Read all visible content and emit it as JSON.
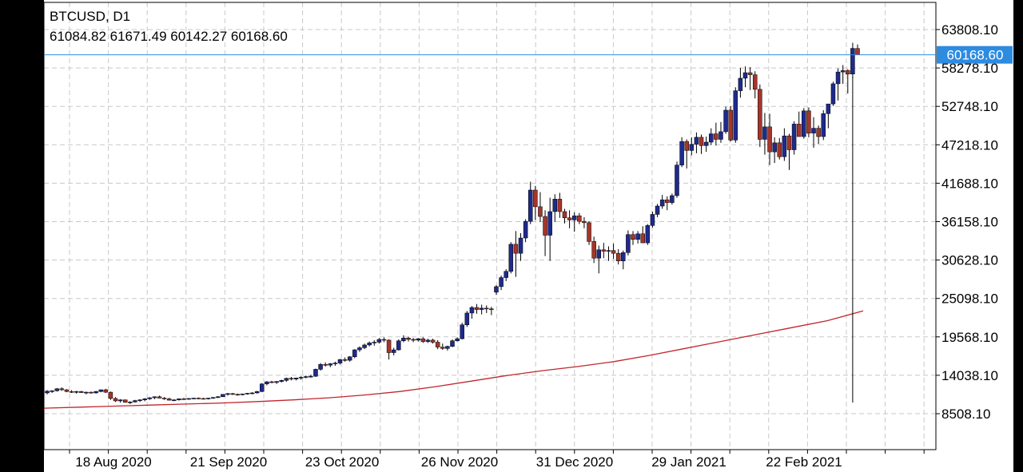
{
  "chart_data": {
    "type": "candlestick",
    "symbol": "BTCUSD, D1",
    "ohlc_label": "61084.82 61671.49 60142.27 60168.60",
    "last_price_label": "60168.60",
    "last_price": 60168.6,
    "y_ticks": [
      "63808.10",
      "58278.10",
      "52748.10",
      "47218.10",
      "41688.10",
      "36158.10",
      "30628.10",
      "25098.10",
      "19568.10",
      "14038.10",
      "8508.10"
    ],
    "x_ticks": [
      "18 Aug 2020",
      "21 Sep 2020",
      "23 Oct 2020",
      "26 Nov 2020",
      "31 Dec 2020",
      "29 Jan 2021",
      "22 Feb 2021"
    ],
    "ylim": [
      3500,
      66500
    ],
    "grid": true,
    "ma_series": {
      "values": [
        9300,
        9450,
        9600,
        9750,
        9900,
        10050,
        10250,
        10500,
        10800,
        11200,
        11700,
        12400,
        13200,
        14000,
        14700,
        15300,
        16000,
        16900,
        17900,
        18900,
        19900,
        20900,
        21900,
        23300
      ]
    },
    "candles": [
      [
        11500,
        11900,
        11300,
        11750
      ],
      [
        11750,
        11900,
        11500,
        11800
      ],
      [
        11800,
        12200,
        11700,
        12100
      ],
      [
        12100,
        12300,
        11800,
        11950
      ],
      [
        11950,
        12050,
        11600,
        11700
      ],
      [
        11700,
        11900,
        11500,
        11650
      ],
      [
        11650,
        11800,
        11400,
        11700
      ],
      [
        11700,
        11800,
        11500,
        11550
      ],
      [
        11550,
        11700,
        11300,
        11600
      ],
      [
        11600,
        11700,
        11400,
        11500
      ],
      [
        11500,
        11800,
        11400,
        11700
      ],
      [
        11700,
        12000,
        11600,
        11950
      ],
      [
        11950,
        12100,
        11500,
        11600
      ],
      [
        11600,
        11700,
        10500,
        10700
      ],
      [
        10700,
        10900,
        10200,
        10350
      ],
      [
        10350,
        10600,
        10100,
        10500
      ],
      [
        10500,
        10550,
        10100,
        10150
      ],
      [
        10150,
        10300,
        9900,
        10200
      ],
      [
        10200,
        10500,
        10100,
        10400
      ],
      [
        10400,
        10600,
        10200,
        10500
      ],
      [
        10500,
        10750,
        10300,
        10650
      ],
      [
        10650,
        10900,
        10500,
        10800
      ],
      [
        10800,
        11000,
        10600,
        10950
      ],
      [
        10950,
        11100,
        10700,
        10750
      ],
      [
        10750,
        10900,
        10500,
        10650
      ],
      [
        10650,
        10800,
        10400,
        10450
      ],
      [
        10450,
        10600,
        10300,
        10500
      ],
      [
        10500,
        10700,
        10400,
        10650
      ],
      [
        10650,
        10800,
        10500,
        10600
      ],
      [
        10600,
        10750,
        10500,
        10700
      ],
      [
        10700,
        10800,
        10600,
        10750
      ],
      [
        10750,
        10850,
        10600,
        10700
      ],
      [
        10700,
        10800,
        10600,
        10650
      ],
      [
        10650,
        10800,
        10550,
        10750
      ],
      [
        10750,
        10900,
        10650,
        10850
      ],
      [
        10850,
        11050,
        10750,
        10950
      ],
      [
        10950,
        11200,
        10900,
        11300
      ],
      [
        11300,
        11500,
        11100,
        11400
      ],
      [
        11400,
        11500,
        11200,
        11300
      ],
      [
        11300,
        11400,
        11100,
        11250
      ],
      [
        11250,
        11400,
        11150,
        11350
      ],
      [
        11350,
        11500,
        11250,
        11450
      ],
      [
        11450,
        11600,
        11300,
        11500
      ],
      [
        11500,
        11800,
        11400,
        11700
      ],
      [
        11700,
        12900,
        11600,
        12800
      ],
      [
        12800,
        13200,
        12600,
        13100
      ],
      [
        13100,
        13250,
        12900,
        13000
      ],
      [
        13000,
        13200,
        12800,
        13150
      ],
      [
        13150,
        13400,
        13000,
        13300
      ],
      [
        13300,
        13700,
        13100,
        13600
      ],
      [
        13600,
        13800,
        13300,
        13500
      ],
      [
        13500,
        13700,
        13300,
        13650
      ],
      [
        13650,
        13900,
        13400,
        13750
      ],
      [
        13750,
        14000,
        13600,
        13850
      ],
      [
        13850,
        14100,
        13700,
        13900
      ],
      [
        13900,
        15000,
        13800,
        14900
      ],
      [
        14900,
        15800,
        14700,
        15600
      ],
      [
        15600,
        15900,
        15300,
        15500
      ],
      [
        15500,
        15800,
        15200,
        15700
      ],
      [
        15700,
        16000,
        15400,
        15800
      ],
      [
        15800,
        16400,
        15600,
        16300
      ],
      [
        16300,
        16600,
        16000,
        16200
      ],
      [
        16200,
        16800,
        16000,
        16700
      ],
      [
        16700,
        17800,
        16500,
        17700
      ],
      [
        17700,
        18200,
        17400,
        18000
      ],
      [
        18000,
        18600,
        17800,
        18400
      ],
      [
        18400,
        18900,
        18200,
        18700
      ],
      [
        18700,
        19100,
        18300,
        18800
      ],
      [
        18800,
        19400,
        18600,
        19200
      ],
      [
        19200,
        19500,
        18800,
        19100
      ],
      [
        19100,
        19200,
        16300,
        17300
      ],
      [
        17300,
        18000,
        16900,
        17700
      ],
      [
        17700,
        19200,
        17600,
        19000
      ],
      [
        19000,
        19800,
        18800,
        19400
      ],
      [
        19400,
        19600,
        18900,
        19200
      ],
      [
        19200,
        19400,
        18800,
        19100
      ],
      [
        19100,
        19400,
        18900,
        19300
      ],
      [
        19300,
        19500,
        18700,
        18900
      ],
      [
        18900,
        19300,
        18700,
        19100
      ],
      [
        19100,
        19300,
        18600,
        18800
      ],
      [
        18800,
        19100,
        17800,
        18100
      ],
      [
        18100,
        18600,
        17700,
        17900
      ],
      [
        17900,
        18300,
        17600,
        18200
      ],
      [
        18200,
        19200,
        18100,
        19000
      ],
      [
        19000,
        19500,
        18900,
        19300
      ],
      [
        19300,
        21600,
        19200,
        21300
      ],
      [
        21300,
        23300,
        21000,
        23000
      ],
      [
        23000,
        24000,
        22200,
        23800
      ],
      [
        23800,
        24300,
        22900,
        23500
      ],
      [
        23500,
        24200,
        22800,
        23700
      ],
      [
        23700,
        24100,
        23000,
        23600
      ],
      [
        23600,
        23900,
        22700,
        23500
      ],
      [
        26000,
        27000,
        25600,
        26800
      ],
      [
        26800,
        28400,
        26300,
        28100
      ],
      [
        28100,
        29300,
        27600,
        29000
      ],
      [
        29000,
        33200,
        28700,
        32900
      ],
      [
        32900,
        34800,
        28200,
        31600
      ],
      [
        31600,
        34500,
        30500,
        33800
      ],
      [
        33800,
        36500,
        33200,
        36200
      ],
      [
        36200,
        41900,
        35800,
        40700
      ],
      [
        40700,
        41300,
        36400,
        38300
      ],
      [
        38300,
        40400,
        36100,
        36900
      ],
      [
        36900,
        37800,
        31200,
        34200
      ],
      [
        34200,
        39600,
        30500,
        37600
      ],
      [
        37600,
        40100,
        36100,
        39400
      ],
      [
        39400,
        40300,
        36700,
        37600
      ],
      [
        37600,
        38000,
        35900,
        36700
      ],
      [
        36700,
        37800,
        35200,
        36400
      ],
      [
        36400,
        37500,
        34700,
        37000
      ],
      [
        37000,
        37400,
        35800,
        36200
      ],
      [
        36200,
        36800,
        35200,
        36000
      ],
      [
        36000,
        36200,
        32800,
        33300
      ],
      [
        33300,
        34000,
        30200,
        30900
      ],
      [
        30900,
        32700,
        28700,
        32100
      ],
      [
        32100,
        33100,
        30900,
        31900
      ],
      [
        31900,
        32600,
        30500,
        32000
      ],
      [
        32000,
        33000,
        30800,
        31600
      ],
      [
        31600,
        32200,
        30000,
        30500
      ],
      [
        30500,
        32000,
        29300,
        31700
      ],
      [
        31700,
        34900,
        31300,
        34300
      ],
      [
        34300,
        34800,
        32800,
        33600
      ],
      [
        33600,
        34800,
        33000,
        34400
      ],
      [
        34400,
        35500,
        33200,
        33100
      ],
      [
        33100,
        35800,
        32800,
        35600
      ],
      [
        35600,
        37600,
        35300,
        37200
      ],
      [
        37200,
        38700,
        36800,
        38400
      ],
      [
        38400,
        40000,
        38000,
        39300
      ],
      [
        39300,
        39800,
        37800,
        38900
      ],
      [
        38900,
        40200,
        38600,
        39900
      ],
      [
        39900,
        44800,
        39600,
        44300
      ],
      [
        44300,
        48300,
        44000,
        47700
      ],
      [
        47700,
        48000,
        43800,
        46400
      ],
      [
        46400,
        48300,
        45700,
        47300
      ],
      [
        47300,
        49000,
        46000,
        48300
      ],
      [
        48300,
        48700,
        45900,
        47100
      ],
      [
        47100,
        48400,
        46200,
        47600
      ],
      [
        47600,
        49600,
        47200,
        48800
      ],
      [
        48800,
        50400,
        47100,
        48000
      ],
      [
        48000,
        50500,
        47500,
        49100
      ],
      [
        49100,
        52700,
        48800,
        52200
      ],
      [
        52200,
        52800,
        47700,
        47900
      ],
      [
        47900,
        55500,
        47500,
        55000
      ],
      [
        55000,
        58300,
        54000,
        56800
      ],
      [
        56800,
        58500,
        55500,
        57600
      ],
      [
        57600,
        58400,
        55100,
        57300
      ],
      [
        57300,
        57800,
        53900,
        55200
      ],
      [
        55200,
        55900,
        46900,
        48000
      ],
      [
        48000,
        51800,
        45800,
        49800
      ],
      [
        49800,
        51700,
        44300,
        46200
      ],
      [
        46200,
        48300,
        44600,
        47500
      ],
      [
        47500,
        48200,
        45100,
        45500
      ],
      [
        45500,
        49600,
        44900,
        48500
      ],
      [
        48500,
        48800,
        43600,
        46500
      ],
      [
        46500,
        50600,
        45800,
        50200
      ],
      [
        50200,
        52000,
        48800,
        48400
      ],
      [
        48400,
        52500,
        48100,
        52100
      ],
      [
        52100,
        52600,
        48300,
        48900
      ],
      [
        48900,
        51200,
        46800,
        49600
      ],
      [
        49600,
        50000,
        47300,
        48400
      ],
      [
        48400,
        52200,
        47900,
        51700
      ],
      [
        51700,
        53000,
        49600,
        53100
      ],
      [
        53100,
        56300,
        52800,
        56000
      ],
      [
        56000,
        58200,
        53600,
        57700
      ],
      [
        57700,
        58700,
        56000,
        57900
      ],
      [
        57900,
        58100,
        54600,
        57400
      ],
      [
        57400,
        61900,
        56800,
        61100
      ],
      [
        61084.82,
        61671.49,
        60142.27,
        60168.6
      ]
    ]
  }
}
